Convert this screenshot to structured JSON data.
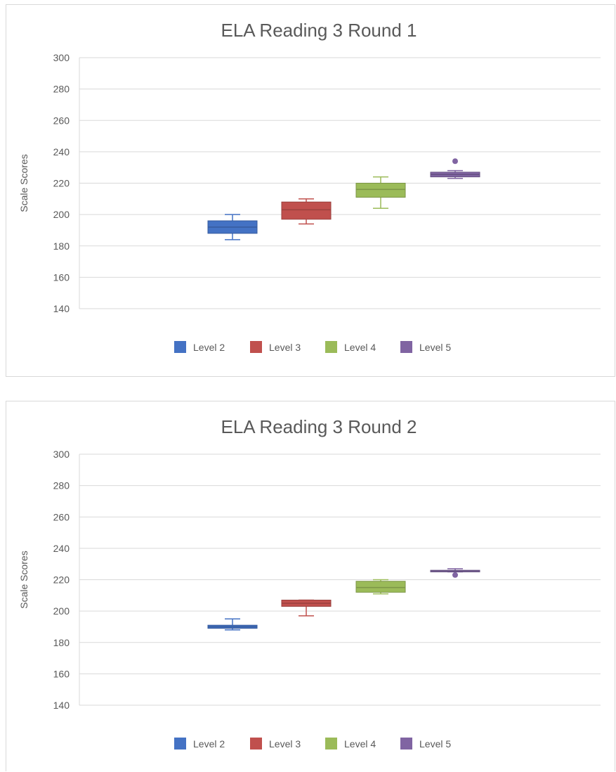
{
  "chart_data": [
    {
      "type": "box",
      "title": "ELA Reading 3 Round 1",
      "ylabel": "Scale Scores",
      "xlabel": "",
      "ylim": [
        140,
        300
      ],
      "yticks": [
        140,
        160,
        180,
        200,
        220,
        240,
        260,
        280,
        300
      ],
      "grid": true,
      "legend_position": "bottom",
      "series": [
        {
          "name": "Level 2",
          "color": "#4472C4",
          "min": 184,
          "q1": 188,
          "median": 192,
          "q3": 196,
          "max": 200,
          "outliers": []
        },
        {
          "name": "Level 3",
          "color": "#C0504D",
          "min": 194,
          "q1": 197,
          "median": 203,
          "q3": 208,
          "max": 210,
          "outliers": []
        },
        {
          "name": "Level 4",
          "color": "#9BBB59",
          "min": 204,
          "q1": 211,
          "median": 216,
          "q3": 220,
          "max": 224,
          "outliers": []
        },
        {
          "name": "Level 5",
          "color": "#8064A2",
          "min": 223,
          "q1": 224,
          "median": 225.5,
          "q3": 227,
          "max": 228,
          "outliers": [
            234
          ]
        }
      ]
    },
    {
      "type": "box",
      "title": "ELA Reading 3 Round 2",
      "ylabel": "Scale Scores",
      "xlabel": "",
      "ylim": [
        140,
        300
      ],
      "yticks": [
        140,
        160,
        180,
        200,
        220,
        240,
        260,
        280,
        300
      ],
      "grid": true,
      "legend_position": "bottom",
      "series": [
        {
          "name": "Level 2",
          "color": "#4472C4",
          "min": 188,
          "q1": 189,
          "median": 190,
          "q3": 191,
          "max": 195,
          "outliers": []
        },
        {
          "name": "Level 3",
          "color": "#C0504D",
          "min": 197,
          "q1": 203,
          "median": 205,
          "q3": 207,
          "max": 207,
          "outliers": []
        },
        {
          "name": "Level 4",
          "color": "#9BBB59",
          "min": 211,
          "q1": 212,
          "median": 215,
          "q3": 219,
          "max": 220,
          "outliers": []
        },
        {
          "name": "Level 5",
          "color": "#8064A2",
          "min": 225,
          "q1": 225,
          "median": 225.5,
          "q3": 226,
          "max": 227,
          "outliers": [
            223
          ]
        }
      ]
    }
  ]
}
